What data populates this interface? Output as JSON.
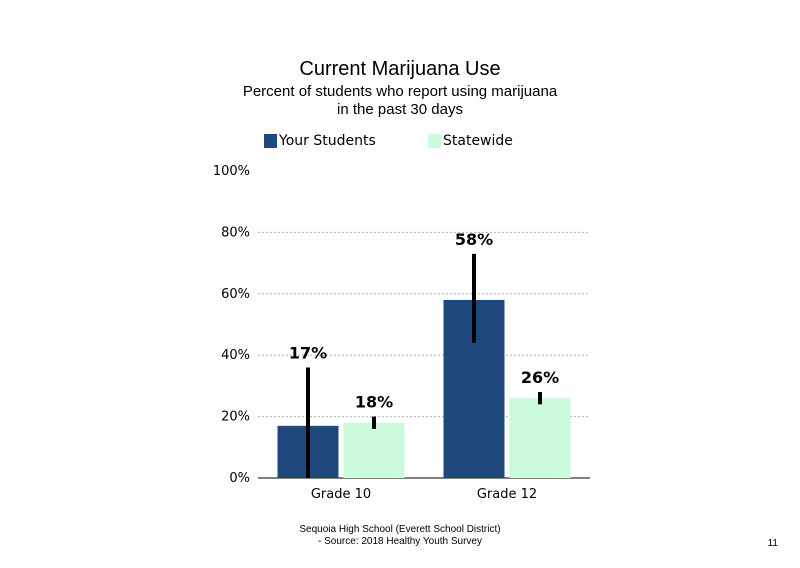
{
  "colors": {
    "your_students": "#1f497d",
    "statewide": "#ccfadc",
    "grid": "#b0b0b0",
    "error_bar": "#000000"
  },
  "legend": {
    "your_students": "Your Students",
    "statewide": "Statewide"
  },
  "footer": {
    "line1": "Sequoia High School (Everett School District)",
    "line2": "- Source: 2018 Healthy Youth Survey"
  },
  "page_number": "11",
  "chart_data": {
    "type": "bar",
    "title": "Current Marijuana Use",
    "subtitle_lines": [
      "Percent of students who report using marijuana",
      "in the past 30 days"
    ],
    "xlabel": "",
    "ylabel": "",
    "categories": [
      "Grade 10",
      "Grade 12"
    ],
    "y_ticks": [
      "0%",
      "20%",
      "40%",
      "60%",
      "80%",
      "100%"
    ],
    "ylim": [
      0,
      100
    ],
    "grid": true,
    "legend_position": "top",
    "series": [
      {
        "name": "Your Students",
        "values": [
          17,
          58
        ],
        "labels": [
          "17%",
          "58%"
        ],
        "error_low": [
          0,
          44
        ],
        "error_high": [
          36,
          73
        ]
      },
      {
        "name": "Statewide",
        "values": [
          18,
          26
        ],
        "labels": [
          "18%",
          "26%"
        ],
        "error_low": [
          16,
          24
        ],
        "error_high": [
          20,
          28
        ]
      }
    ]
  }
}
